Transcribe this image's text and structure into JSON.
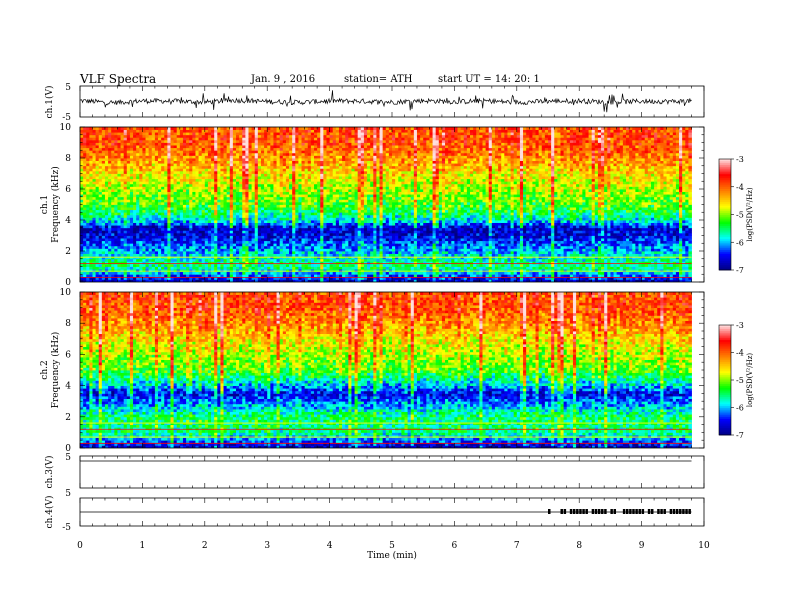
{
  "header": {
    "title": "VLF  Spectra",
    "date": "Jan. 9  , 2016",
    "station": "station= ATH",
    "start": "start  UT  =    14: 20: 1"
  },
  "colorbar": {
    "ticks": [
      "-3",
      "-4",
      "-5",
      "-6",
      "-7"
    ],
    "label": "log(PSD(V²/Hz)",
    "colors": [
      "#000080",
      "#0000ff",
      "#00ffff",
      "#00ff00",
      "#ffff00",
      "#ff8000",
      "#ff0000",
      "#ffe0e0"
    ]
  },
  "chart_data": [
    {
      "type": "line",
      "ylabel": "ch.1(V)",
      "yticks": [
        "5",
        "-5"
      ],
      "ylim": [
        -5,
        5
      ],
      "xlim": [
        0,
        10
      ],
      "description_series": [
        {
          "x": [
            0,
            0.5,
            1,
            1.5,
            2,
            2.5,
            3,
            3.5,
            4,
            4.5,
            5,
            5.5,
            6,
            6.5,
            7,
            7.5,
            8,
            8.5,
            9,
            9.5,
            9.8
          ],
          "y": [
            0.3,
            -0.4,
            0.2,
            0.1,
            -0.2,
            0.4,
            0.0,
            -0.3,
            0.2,
            0.1,
            -0.2,
            0.3,
            -0.1,
            0.2,
            -0.3,
            0.1,
            0.2,
            -0.2,
            0.1,
            0.0,
            0.2
          ]
        }
      ],
      "color": "#000000"
    },
    {
      "type": "heatmap",
      "ylabel": "ch.1",
      "ylabel2": "Frequency  (kHz)",
      "yticks": [
        "0",
        "2",
        "4",
        "6",
        "8",
        "10"
      ],
      "ylim": [
        0,
        10
      ],
      "xlim": [
        0,
        9.8
      ],
      "value_label": "log(PSD(V²/Hz)",
      "value_range": [
        -7,
        -3
      ],
      "bands_khz": [
        0,
        1,
        2,
        3,
        3.5,
        4,
        5,
        6,
        7,
        8,
        9,
        10
      ],
      "log_psd": [
        -6.8,
        -5.5,
        -6.0,
        -6.6,
        -6.7,
        -5.8,
        -5.2,
        -4.9,
        -4.6,
        -4.2,
        -3.9,
        -3.9
      ]
    },
    {
      "type": "heatmap",
      "ylabel": "ch.2",
      "ylabel2": "Frequency  (kHz)",
      "yticks": [
        "0",
        "2",
        "4",
        "6",
        "8",
        "10"
      ],
      "ylim": [
        0,
        10
      ],
      "xlim": [
        0,
        9.8
      ],
      "value_label": "log(PSD(V²/Hz)",
      "value_range": [
        -7,
        -3
      ],
      "bands_khz": [
        0,
        1,
        2,
        3,
        3.5,
        4,
        5,
        6,
        7,
        8,
        9,
        10
      ],
      "log_psd": [
        -6.8,
        -5.6,
        -5.5,
        -6.2,
        -6.6,
        -6.0,
        -5.2,
        -4.9,
        -4.6,
        -4.2,
        -3.9,
        -3.9
      ]
    },
    {
      "type": "line",
      "ylabel": "ch.3(V)",
      "yticks": [
        "5",
        "5"
      ],
      "xlim": [
        0,
        10
      ]
    },
    {
      "type": "line",
      "ylabel": "ch.4(V)",
      "yticks": [
        "5",
        "-5"
      ],
      "xlim": [
        0,
        10
      ],
      "pulse_start_min": 7.4,
      "pulse_end_min": 9.8
    }
  ],
  "xaxis": {
    "label": "Time  (min)",
    "ticks": [
      "0",
      "1",
      "2",
      "3",
      "4",
      "5",
      "6",
      "7",
      "8",
      "9",
      "10"
    ]
  }
}
